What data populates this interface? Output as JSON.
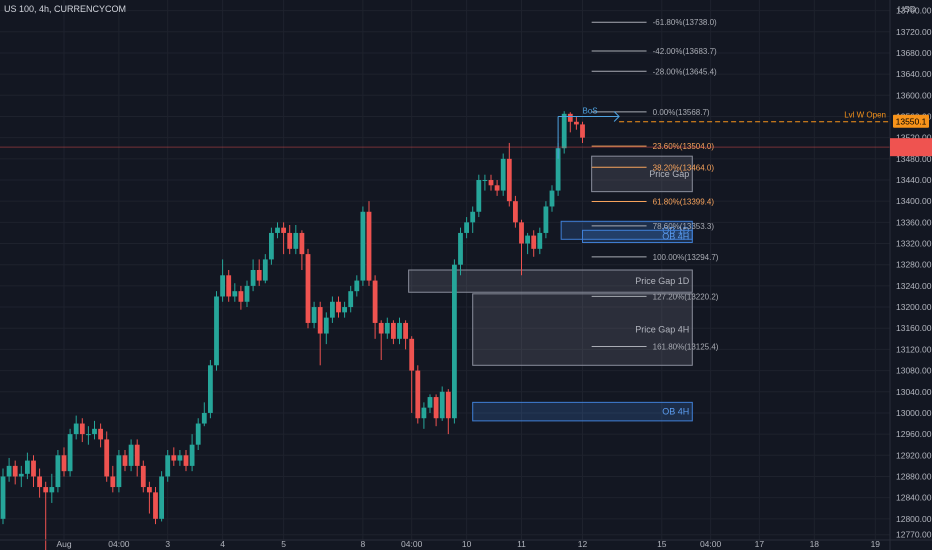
{
  "header": {
    "title": "US 100, 4h, CURRENCYCOM",
    "currency": "USD"
  },
  "colors": {
    "bg": "#131722",
    "up": "#26a69a",
    "down": "#ef5350",
    "grid": "#1e222d",
    "text": "#b2b5be",
    "fib_orange": "#f7a35c",
    "fib_grey": "#a9acb4",
    "ob": "#3f7fd6",
    "gap": "#8a8e9c"
  },
  "chart_data": {
    "type": "candlestick",
    "title": "US 100, 4h, CURRENCYCOM",
    "ylabel": "USD",
    "ylim": [
      12760,
      13780
    ],
    "y_ticks": [
      12770,
      12800,
      12840,
      12880,
      12920,
      12960,
      13000,
      13040,
      13080,
      13120,
      13160,
      13200,
      13240,
      13280,
      13320,
      13360,
      13400,
      13440,
      13480,
      13520,
      13560,
      13600,
      13640,
      13680,
      13720,
      13760
    ],
    "x_ticks": [
      {
        "i": 10,
        "label": "Aug"
      },
      {
        "i": 19,
        "label": "04:00"
      },
      {
        "i": 27,
        "label": "3"
      },
      {
        "i": 36,
        "label": "4"
      },
      {
        "i": 46,
        "label": "5"
      },
      {
        "i": 59,
        "label": "8"
      },
      {
        "i": 67,
        "label": "04:00"
      },
      {
        "i": 76,
        "label": "10"
      },
      {
        "i": 85,
        "label": "11"
      },
      {
        "i": 95,
        "label": "12"
      },
      {
        "i": 108,
        "label": "15"
      },
      {
        "i": 116,
        "label": "04:00"
      },
      {
        "i": 124,
        "label": "17"
      },
      {
        "i": 133,
        "label": "18"
      },
      {
        "i": 143,
        "label": "19"
      }
    ],
    "candles": [
      [
        12800,
        12880,
        12790,
        12895
      ],
      [
        12880,
        12900,
        12870,
        12915
      ],
      [
        12900,
        12880,
        12865,
        12910
      ],
      [
        12880,
        12885,
        12860,
        12900
      ],
      [
        12885,
        12910,
        12875,
        12925
      ],
      [
        12910,
        12880,
        12860,
        12920
      ],
      [
        12880,
        12860,
        12840,
        12895
      ],
      [
        12860,
        12850,
        12740,
        12870
      ],
      [
        12850,
        12860,
        12830,
        12885
      ],
      [
        12860,
        12920,
        12850,
        12930
      ],
      [
        12920,
        12890,
        12880,
        12935
      ],
      [
        12890,
        12960,
        12880,
        12970
      ],
      [
        12960,
        12980,
        12950,
        12995
      ],
      [
        12980,
        12960,
        12945,
        12990
      ],
      [
        12960,
        12960,
        12940,
        12975
      ],
      [
        12960,
        12970,
        12950,
        12985
      ],
      [
        12970,
        12950,
        12935,
        12980
      ],
      [
        12950,
        12880,
        12870,
        12965
      ],
      [
        12880,
        12860,
        12850,
        12900
      ],
      [
        12860,
        12920,
        12850,
        12930
      ],
      [
        12920,
        12900,
        12890,
        12930
      ],
      [
        12900,
        12940,
        12890,
        12950
      ],
      [
        12940,
        12900,
        12880,
        12950
      ],
      [
        12900,
        12860,
        12850,
        12910
      ],
      [
        12860,
        12850,
        12810,
        12870
      ],
      [
        12850,
        12800,
        12790,
        12860
      ],
      [
        12800,
        12880,
        12795,
        12890
      ],
      [
        12880,
        12920,
        12870,
        12930
      ],
      [
        12920,
        12910,
        12900,
        12935
      ],
      [
        12910,
        12920,
        12900,
        12930
      ],
      [
        12920,
        12900,
        12890,
        12930
      ],
      [
        12900,
        12940,
        12890,
        12960
      ],
      [
        12940,
        12980,
        12930,
        12990
      ],
      [
        12980,
        13000,
        12975,
        13020
      ],
      [
        13000,
        13090,
        12990,
        13100
      ],
      [
        13090,
        13220,
        13080,
        13230
      ],
      [
        13220,
        13260,
        13210,
        13290
      ],
      [
        13260,
        13220,
        13210,
        13270
      ],
      [
        13220,
        13230,
        13210,
        13245
      ],
      [
        13230,
        13210,
        13195,
        13240
      ],
      [
        13210,
        13240,
        13200,
        13250
      ],
      [
        13240,
        13270,
        13230,
        13290
      ],
      [
        13270,
        13250,
        13240,
        13290
      ],
      [
        13250,
        13290,
        13245,
        13300
      ],
      [
        13290,
        13340,
        13280,
        13350
      ],
      [
        13340,
        13350,
        13330,
        13360
      ],
      [
        13350,
        13340,
        13300,
        13360
      ],
      [
        13340,
        13310,
        13300,
        13355
      ],
      [
        13310,
        13340,
        13300,
        13355
      ],
      [
        13340,
        13300,
        13270,
        13345
      ],
      [
        13300,
        13170,
        13160,
        13310
      ],
      [
        13170,
        13200,
        13160,
        13210
      ],
      [
        13200,
        13150,
        13090,
        13210
      ],
      [
        13150,
        13180,
        13130,
        13190
      ],
      [
        13180,
        13210,
        13170,
        13220
      ],
      [
        13210,
        13190,
        13180,
        13220
      ],
      [
        13190,
        13200,
        13180,
        13210
      ],
      [
        13200,
        13230,
        13190,
        13240
      ],
      [
        13230,
        13250,
        13220,
        13260
      ],
      [
        13250,
        13380,
        13240,
        13390
      ],
      [
        13380,
        13250,
        13240,
        13400
      ],
      [
        13250,
        13170,
        13140,
        13260
      ],
      [
        13170,
        13150,
        13100,
        13175
      ],
      [
        13150,
        13170,
        13140,
        13180
      ],
      [
        13170,
        13140,
        13130,
        13175
      ],
      [
        13140,
        13170,
        13130,
        13180
      ],
      [
        13170,
        13140,
        13120,
        13175
      ],
      [
        13140,
        13080,
        13000,
        13145
      ],
      [
        13080,
        12990,
        12980,
        13090
      ],
      [
        12990,
        13010,
        12970,
        13020
      ],
      [
        13010,
        13030,
        13000,
        13035
      ],
      [
        13030,
        12990,
        12975,
        13035
      ],
      [
        12990,
        13040,
        12985,
        13050
      ],
      [
        13040,
        12990,
        12960,
        13045
      ],
      [
        12990,
        13280,
        12980,
        13290
      ],
      [
        13280,
        13340,
        13260,
        13350
      ],
      [
        13340,
        13360,
        13330,
        13370
      ],
      [
        13360,
        13380,
        13340,
        13390
      ],
      [
        13380,
        13440,
        13370,
        13450
      ],
      [
        13440,
        13440,
        13420,
        13450
      ],
      [
        13440,
        13430,
        13420,
        13450
      ],
      [
        13430,
        13420,
        13410,
        13440
      ],
      [
        13420,
        13480,
        13410,
        13490
      ],
      [
        13480,
        13400,
        13390,
        13510
      ],
      [
        13400,
        13360,
        13350,
        13410
      ],
      [
        13360,
        13320,
        13260,
        13365
      ],
      [
        13320,
        13335,
        13300,
        13340
      ],
      [
        13335,
        13310,
        13295,
        13345
      ],
      [
        13310,
        13340,
        13300,
        13350
      ],
      [
        13340,
        13390,
        13330,
        13400
      ],
      [
        13390,
        13420,
        13380,
        13430
      ],
      [
        13420,
        13500,
        13410,
        13510
      ],
      [
        13500,
        13565,
        13490,
        13570
      ],
      [
        13565,
        13550,
        13530,
        13568
      ],
      [
        13550,
        13545,
        13535,
        13560
      ],
      [
        13545,
        13520,
        13510,
        13550
      ]
    ],
    "fib_levels": [
      {
        "label": "-61.80%(13738.0)",
        "price": 13738.0,
        "color": "#a9acb4"
      },
      {
        "label": "-42.00%(13683.7)",
        "price": 13683.7,
        "color": "#a9acb4"
      },
      {
        "label": "-28.00%(13645.4)",
        "price": 13645.4,
        "color": "#a9acb4"
      },
      {
        "label": "0.00%(13568.7)",
        "price": 13568.7,
        "color": "#a9acb4"
      },
      {
        "label": "23.60%(13504.0)",
        "price": 13504.0,
        "color": "#f7a35c"
      },
      {
        "label": "38.20%(13464.0)",
        "price": 13464.0,
        "color": "#f7a35c"
      },
      {
        "label": "61.80%(13399.4)",
        "price": 13399.4,
        "color": "#f7a35c"
      },
      {
        "label": "78.60%(13353.3)",
        "price": 13353.3,
        "color": "#a9acb4"
      },
      {
        "label": "100.00%(13294.7)",
        "price": 13294.7,
        "color": "#a9acb4"
      },
      {
        "label": "127.20%(13220.2)",
        "price": 13220.2,
        "color": "#a9acb4"
      },
      {
        "label": "161.80%(13125.4)",
        "price": 13125.4,
        "color": "#a9acb4"
      }
    ],
    "zones": [
      {
        "label": "Price Gap",
        "kind": "gap",
        "i0": 96.5,
        "i1": 113,
        "top": 13485,
        "bottom": 13418
      },
      {
        "label": "OB 1D",
        "kind": "ob",
        "i0": 91.5,
        "i1": 113,
        "top": 13362,
        "bottom": 13328
      },
      {
        "label": "OB 4H",
        "kind": "ob",
        "i0": 95,
        "i1": 113,
        "top": 13345,
        "bottom": 13322
      },
      {
        "label": "Price Gap 1D",
        "kind": "gap",
        "i0": 66.5,
        "i1": 113,
        "top": 13270,
        "bottom": 13228
      },
      {
        "label": "Price Gap 4H",
        "kind": "gap",
        "i0": 77,
        "i1": 113,
        "top": 13225,
        "bottom": 13090
      },
      {
        "label": "OB 4H",
        "kind": "ob",
        "i0": 77,
        "i1": 113,
        "top": 13020,
        "bottom": 12985
      }
    ],
    "bos": {
      "label": "BoS",
      "i0": 91,
      "i1": 101,
      "price": 13560
    },
    "level_line": {
      "label": "Lvl W Open",
      "price": 13550.1
    },
    "last_price_label": "13550.1",
    "red_marker_price": 13502
  }
}
